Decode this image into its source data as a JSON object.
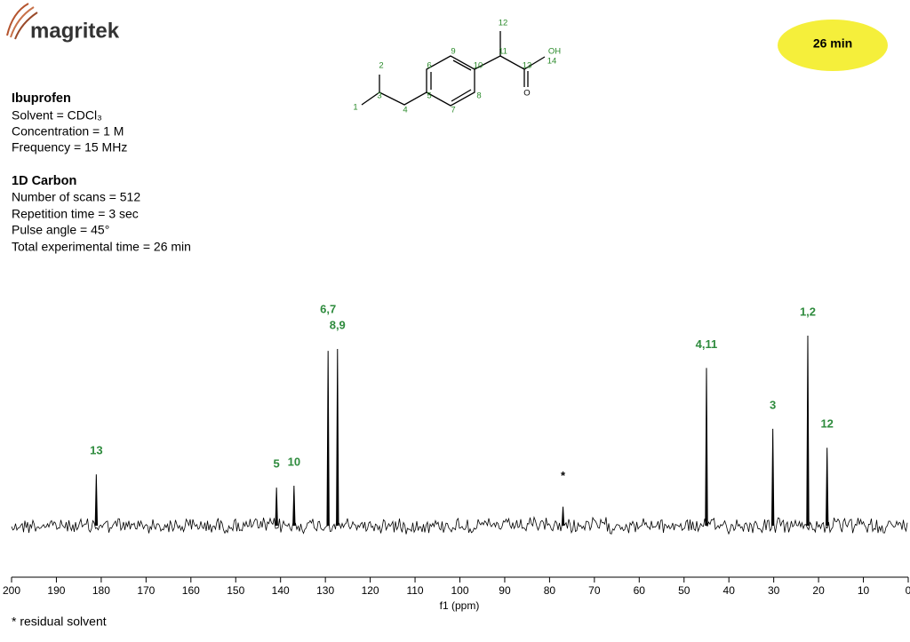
{
  "header": {
    "logo": "magritek",
    "badge": "26 min"
  },
  "sample": {
    "title": "Ibuprofen",
    "lines": [
      "Solvent = CDCl₃",
      "Concentration = 1 M",
      "Frequency = 15 MHz"
    ]
  },
  "experiment": {
    "title": "1D Carbon",
    "lines": [
      "Number of scans = 512",
      "Repetition time = 3 sec",
      "Pulse angle = 45°",
      "Total experimental time = 26 min"
    ]
  },
  "molecule": {
    "atoms": [
      "1",
      "2",
      "3",
      "4",
      "5",
      "6",
      "7",
      "8",
      "9",
      "10",
      "11",
      "12",
      "13",
      "14",
      "OH",
      "O"
    ]
  },
  "footnote": "* residual solvent",
  "chart_data": {
    "type": "spectrum",
    "x": [
      181.1,
      140.9,
      137.0,
      129.4,
      127.3,
      77.0,
      45.0,
      30.2,
      22.4,
      18.1
    ],
    "values": [
      27,
      20,
      21,
      92,
      93,
      10,
      83,
      51,
      100,
      41
    ],
    "peak_labels": [
      "13",
      "5",
      "10",
      "6,7",
      "8,9",
      "*",
      "4,11",
      "3",
      "1,2",
      "12"
    ],
    "color": "#000000",
    "label_color": "#2e8b3d",
    "xlabel": "f1 (ppm)",
    "xlim": [
      200,
      0
    ],
    "xticks": [
      200,
      190,
      180,
      170,
      160,
      150,
      140,
      130,
      120,
      110,
      100,
      90,
      80,
      70,
      60,
      50,
      40,
      30,
      20,
      10,
      0
    ],
    "ylim": [
      0,
      100
    ]
  }
}
